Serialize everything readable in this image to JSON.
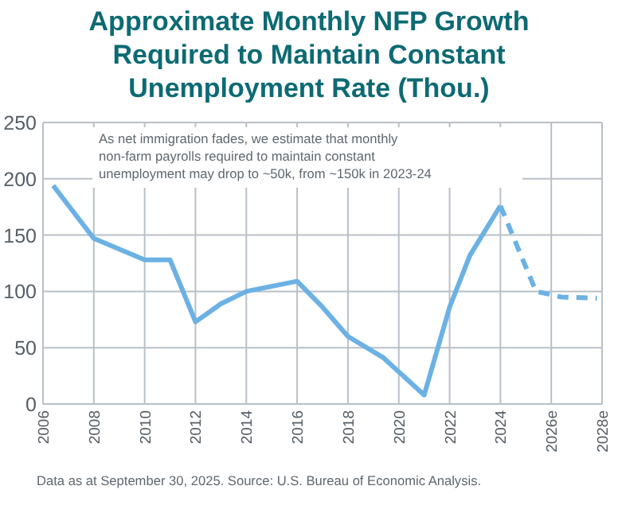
{
  "chart_data": {
    "type": "line",
    "title": "Approximate Monthly NFP Growth Required to Maintain Constant Unemployment Rate (Thou.)",
    "x": [
      2006.4,
      2008,
      2010,
      2011,
      2012,
      2013,
      2014,
      2016,
      2017,
      2018,
      2019.4,
      2021,
      2022,
      2022.8,
      2024
    ],
    "series": [
      {
        "color": "#6cb1e4",
        "line_style": "solid",
        "values": [
          194,
          147,
          128,
          128,
          73,
          89,
          100,
          109,
          86,
          60,
          41,
          8,
          86,
          132,
          176
        ]
      },
      {
        "color": "#6cb1e4",
        "line_style": "dashed",
        "x": [
          2024,
          2025.4,
          2026.4,
          2027.8
        ],
        "values": [
          176,
          100,
          95,
          94
        ]
      }
    ],
    "xlim": [
      2006,
      2028
    ],
    "xticks": [
      2006,
      2008,
      2010,
      2012,
      2014,
      2016,
      2018,
      2020,
      2022,
      2024,
      {
        "value": 2026,
        "label": "2026e"
      },
      {
        "value": 2028,
        "label": "2028e"
      }
    ],
    "ylim": [
      0,
      250
    ],
    "yticks": [
      0,
      50,
      100,
      150,
      200,
      250
    ],
    "grid": true,
    "annotations": [
      "As net immigration fades, we estimate that monthly non-farm payrolls required to maintain constant unemployment may drop to ~50k, from ~150k in 2023-24",
      "Data as at September 30, 2025. Source: U.S. Bureau of Economic Analysis."
    ]
  }
}
